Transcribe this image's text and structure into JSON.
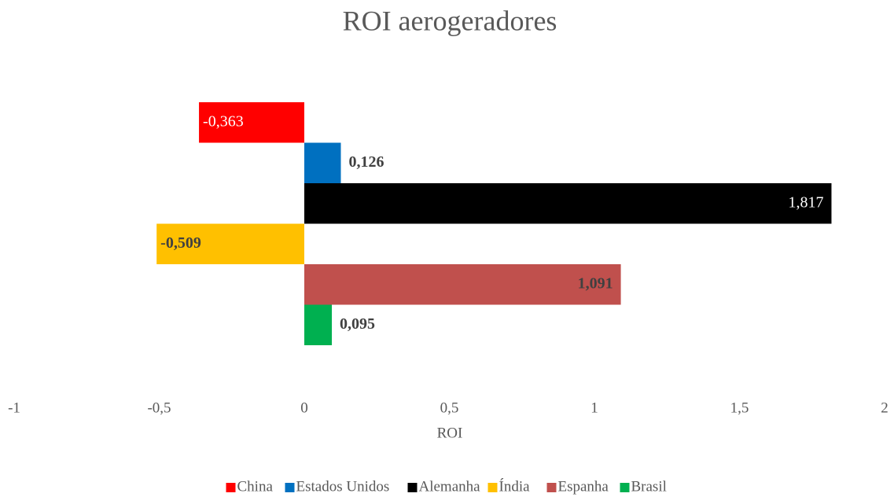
{
  "chart_data": {
    "type": "bar",
    "orientation": "horizontal",
    "title": "ROI aerogeradores",
    "xlabel": "ROI",
    "series": [
      {
        "name": "China",
        "color": "#ff0000",
        "values": [
          -0.363
        ],
        "value_labels": [
          "-0,363"
        ]
      },
      {
        "name": "Estados Unidos",
        "color": "#0070c0",
        "values": [
          0.126
        ],
        "value_labels": [
          "0,126"
        ]
      },
      {
        "name": "Alemanha",
        "color": "#000000",
        "values": [
          1.817
        ],
        "value_labels": [
          "1,817"
        ]
      },
      {
        "name": "Índia",
        "color": "#ffc000",
        "values": [
          -0.509
        ],
        "value_labels": [
          "-0,509"
        ]
      },
      {
        "name": "Espanha",
        "color": "#c0504d",
        "values": [
          1.091
        ],
        "value_labels": [
          "1,091"
        ]
      },
      {
        "name": "Brasil",
        "color": "#00b050",
        "values": [
          0.095
        ],
        "value_labels": [
          "0,095"
        ]
      }
    ],
    "xlim": [
      -1,
      2
    ],
    "xticks": [
      -1,
      {
        "value": -0.5,
        "label": "-0,5"
      },
      0,
      {
        "value": 0.5,
        "label": "0,5"
      },
      1,
      {
        "value": 1.5,
        "label": "1,5"
      },
      2
    ],
    "legend": "bottom"
  }
}
